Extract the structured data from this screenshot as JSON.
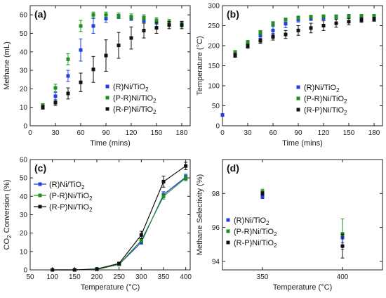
{
  "chart_data": [
    {
      "panel_label": "(a)",
      "type": "scatter",
      "xlabel": "Time (mins)",
      "ylabel": "Methane (mL)",
      "xlim": [
        0,
        190
      ],
      "ylim": [
        0,
        65
      ],
      "xticks": [
        0,
        30,
        60,
        90,
        120,
        150,
        180
      ],
      "yticks": [
        0,
        10,
        20,
        30,
        40,
        50,
        60
      ],
      "legend_position": "bottom-right",
      "series": [
        {
          "name": "(R)Ni/TiO₂",
          "color": "#1f3fe0",
          "x": [
            15,
            30,
            45,
            60,
            75,
            90,
            105,
            120,
            135,
            150,
            165,
            180
          ],
          "y": [
            11,
            16,
            27,
            41,
            54,
            58,
            59,
            58,
            57,
            56,
            55,
            55
          ],
          "err": [
            1,
            2,
            3,
            6,
            4,
            2,
            1,
            1,
            1,
            1,
            1,
            1
          ]
        },
        {
          "name": "(P-R)Ni/TiO₂",
          "color": "#1e8f1e",
          "x": [
            15,
            30,
            45,
            60,
            75,
            90,
            105,
            120,
            135,
            150,
            165,
            180
          ],
          "y": [
            11,
            20.5,
            36,
            54,
            60,
            60,
            59.5,
            59,
            58.5,
            57,
            56,
            55
          ],
          "err": [
            1,
            2,
            3,
            3,
            1.5,
            1.5,
            1.5,
            1.5,
            1.5,
            1.5,
            1.5,
            1.5
          ]
        },
        {
          "name": "(R-P)Ni/TiO₂",
          "color": "#111111",
          "x": [
            15,
            30,
            45,
            60,
            75,
            90,
            105,
            120,
            135,
            150,
            165,
            180
          ],
          "y": [
            10,
            12.5,
            17.5,
            23.5,
            30.5,
            38,
            43.5,
            47.5,
            51.5,
            53,
            54.5,
            54.5
          ],
          "err": [
            1,
            1.5,
            3,
            5,
            7,
            8.5,
            7,
            6,
            4,
            3,
            2,
            2
          ]
        }
      ]
    },
    {
      "panel_label": "(b)",
      "type": "scatter",
      "xlabel": "Time (mins)",
      "ylabel": "Temperature (°C)",
      "xlim": [
        0,
        190
      ],
      "ylim": [
        0,
        300
      ],
      "xticks": [
        0,
        30,
        60,
        90,
        120,
        150,
        180
      ],
      "yticks": [
        0,
        50,
        100,
        150,
        200,
        250,
        300
      ],
      "legend_position": "bottom-right",
      "series": [
        {
          "name": "(R)Ni/TiO₂",
          "color": "#1f3fe0",
          "x": [
            0,
            15,
            30,
            45,
            60,
            75,
            90,
            105,
            120,
            135,
            150,
            165,
            180
          ],
          "y": [
            27,
            180,
            205,
            225,
            238,
            255,
            265,
            268,
            270,
            272,
            272,
            272,
            272
          ],
          "err": [
            0,
            6,
            6,
            8,
            10,
            10,
            6,
            5,
            5,
            4,
            4,
            4,
            4
          ]
        },
        {
          "name": "(P-R)Ni/TiO₂",
          "color": "#1e8f1e",
          "x": [
            15,
            30,
            45,
            60,
            75,
            90,
            105,
            120,
            135,
            150,
            165,
            180
          ],
          "y": [
            183,
            208,
            233,
            255,
            265,
            270,
            272,
            273,
            273,
            274,
            274,
            274
          ],
          "err": [
            5,
            5,
            5,
            5,
            4,
            4,
            4,
            4,
            4,
            4,
            4,
            4
          ]
        },
        {
          "name": "(R-P)Ni/TiO₂",
          "color": "#111111",
          "x": [
            15,
            30,
            45,
            60,
            75,
            90,
            105,
            120,
            135,
            150,
            165,
            180
          ],
          "y": [
            176,
            199,
            212,
            222,
            228,
            238,
            244,
            250,
            256,
            260,
            264,
            266
          ],
          "err": [
            5,
            5,
            6,
            8,
            10,
            12,
            12,
            12,
            10,
            8,
            6,
            5
          ]
        }
      ]
    },
    {
      "panel_label": "(c)",
      "type": "line",
      "xlabel": "Temperature (°C)",
      "ylabel": "CO₂ Conversion (%)",
      "xlim": [
        50,
        410
      ],
      "ylim": [
        0,
        60
      ],
      "xticks": [
        50,
        100,
        150,
        200,
        250,
        300,
        350,
        400
      ],
      "yticks": [
        0,
        10,
        20,
        30,
        40,
        50,
        60
      ],
      "legend_position": "top-left",
      "series": [
        {
          "name": "(R)Ni/TiO₂",
          "color": "#1f3fe0",
          "x": [
            100,
            150,
            200,
            250,
            300,
            350,
            400
          ],
          "y": [
            0,
            0,
            0.3,
            3,
            15,
            41,
            50.5
          ],
          "err": [
            0,
            0,
            0,
            0.5,
            1,
            1.5,
            1.5
          ]
        },
        {
          "name": "(P-R)Ni/TiO₂",
          "color": "#1e8f1e",
          "x": [
            100,
            150,
            200,
            250,
            300,
            350,
            400
          ],
          "y": [
            0,
            0,
            0.3,
            3,
            16,
            40,
            50
          ],
          "err": [
            0,
            0,
            0,
            0.5,
            1,
            1.5,
            1.5
          ]
        },
        {
          "name": "(R-P)Ni/TiO₂",
          "color": "#111111",
          "x": [
            100,
            150,
            200,
            250,
            300,
            350,
            400
          ],
          "y": [
            0,
            0,
            0.5,
            3.5,
            19,
            48,
            56.5
          ],
          "err": [
            0,
            0,
            0,
            0.5,
            2,
            3,
            2
          ]
        }
      ]
    },
    {
      "panel_label": "(d)",
      "type": "scatter",
      "xlabel": "Temperature (°C)",
      "ylabel": "Methane Selectivity (%)",
      "xlim": [
        325,
        425
      ],
      "ylim": [
        93.5,
        100
      ],
      "xticks": [
        350,
        400
      ],
      "yticks": [
        94,
        96,
        98
      ],
      "legend_position": "bottom-left",
      "series": [
        {
          "name": "(R)Ni/TiO₂",
          "color": "#1f3fe0",
          "x": [
            350,
            400
          ],
          "y": [
            97.8,
            95.4
          ],
          "err": [
            0.1,
            0.3
          ]
        },
        {
          "name": "(P-R)Ni/TiO₂",
          "color": "#1e8f1e",
          "x": [
            350,
            400
          ],
          "y": [
            98.1,
            95.6
          ],
          "err": [
            0.15,
            0.9
          ]
        },
        {
          "name": "(R-P)Ni/TiO₂",
          "color": "#111111",
          "x": [
            350,
            400
          ],
          "y": [
            98.0,
            94.9
          ],
          "err": [
            0.1,
            0.7
          ]
        }
      ]
    }
  ]
}
